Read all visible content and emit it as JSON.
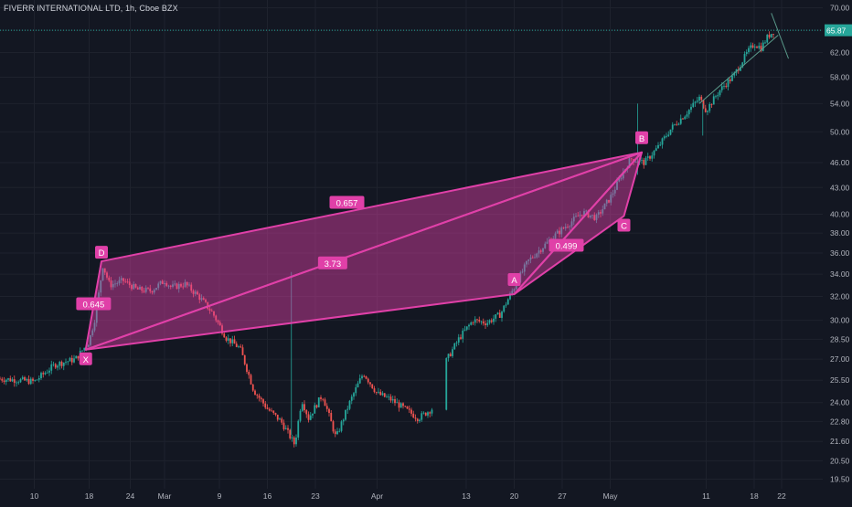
{
  "chart_title": "FIVERR INTERNATIONAL LTD, 1h, Cboe BZX",
  "colors": {
    "background": "#131722",
    "grid": "#1e222d",
    "axis_text": "#b2b5be",
    "candle_up": "#26a69a",
    "candle_down": "#ef5350",
    "pattern": "#e040a8",
    "pattern_fill": "rgba(224,64,168,0.45)",
    "price_line": "#26a69a",
    "trend_line": "#5b9c8c"
  },
  "chart_data": {
    "type": "candlestick",
    "symbol": "FIVERR INTERNATIONAL LTD",
    "interval": "1h",
    "exchange": "Cboe BZX",
    "y_ticks": [
      70.0,
      65.87,
      62.0,
      58.0,
      54.0,
      50.0,
      46.0,
      43.0,
      40.0,
      38.0,
      36.0,
      34.0,
      32.0,
      30.0,
      28.5,
      27.0,
      25.5,
      24.0,
      22.8,
      21.6,
      20.5,
      19.5
    ],
    "y_tick_labels": [
      "70.00",
      "65.87",
      "62.00",
      "58.00",
      "54.00",
      "50.00",
      "46.00",
      "43.00",
      "40.00",
      "38.00",
      "36.00",
      "34.00",
      "32.00",
      "30.00",
      "28.50",
      "27.00",
      "25.50",
      "24.00",
      "22.80",
      "21.60",
      "20.50",
      "19.50"
    ],
    "y_scale": "log",
    "y_range": [
      19.0,
      71.5
    ],
    "x_ticks": [
      {
        "label": "10",
        "x": 10
      },
      {
        "label": "18",
        "x": 18
      },
      {
        "label": "24",
        "x": 24
      },
      {
        "label": "Mar",
        "x": 29
      },
      {
        "label": "9",
        "x": 37
      },
      {
        "label": "16",
        "x": 44
      },
      {
        "label": "23",
        "x": 51
      },
      {
        "label": "Apr",
        "x": 60
      },
      {
        "label": "13",
        "x": 73
      },
      {
        "label": "20",
        "x": 80
      },
      {
        "label": "27",
        "x": 87
      },
      {
        "label": "May",
        "x": 94
      },
      {
        "label": "11",
        "x": 108
      },
      {
        "label": "18",
        "x": 115
      },
      {
        "label": "22",
        "x": 119
      }
    ],
    "x_range": [
      5,
      125
    ],
    "last_price": 65.87,
    "last_price_label": "65.87",
    "price_anchors": [
      [
        5,
        25.6
      ],
      [
        8,
        25.5
      ],
      [
        10,
        25.4
      ],
      [
        13,
        26.6
      ],
      [
        16,
        27.0
      ],
      [
        18,
        28.3
      ],
      [
        19,
        30.5
      ],
      [
        20,
        34.8
      ],
      [
        21,
        33.0
      ],
      [
        23,
        33.4
      ],
      [
        25,
        32.6
      ],
      [
        27,
        32.5
      ],
      [
        29,
        33.4
      ],
      [
        30,
        32.8
      ],
      [
        32,
        33.1
      ],
      [
        34,
        32.0
      ],
      [
        36,
        30.6
      ],
      [
        38,
        28.6
      ],
      [
        40,
        27.8
      ],
      [
        42,
        24.8
      ],
      [
        44,
        23.6
      ],
      [
        46,
        22.8
      ],
      [
        48,
        21.4
      ],
      [
        49,
        24.2
      ],
      [
        50,
        23.0
      ],
      [
        52,
        24.5
      ],
      [
        54,
        21.8
      ],
      [
        56,
        24.0
      ],
      [
        58,
        26.0
      ],
      [
        60,
        24.6
      ],
      [
        62,
        24.2
      ],
      [
        64,
        23.6
      ],
      [
        66,
        23.0
      ],
      [
        68,
        23.6
      ],
      [
        70,
        26.8
      ],
      [
        72,
        28.6
      ],
      [
        74,
        30.0
      ],
      [
        76,
        29.8
      ],
      [
        78,
        30.5
      ],
      [
        80,
        32.8
      ],
      [
        82,
        35.2
      ],
      [
        84,
        36.5
      ],
      [
        86,
        37.8
      ],
      [
        88,
        39.0
      ],
      [
        90,
        40.2
      ],
      [
        92,
        39.6
      ],
      [
        94,
        41.8
      ],
      [
        96,
        45.0
      ],
      [
        97,
        46.5
      ],
      [
        99,
        46.0
      ],
      [
        101,
        48.0
      ],
      [
        103,
        50.6
      ],
      [
        105,
        52.5
      ],
      [
        107,
        54.8
      ],
      [
        108,
        53.0
      ],
      [
        110,
        56.0
      ],
      [
        112,
        58.2
      ],
      [
        114,
        62.0
      ],
      [
        115,
        63.5
      ],
      [
        116,
        62.8
      ],
      [
        117,
        64.8
      ],
      [
        118,
        65.9
      ]
    ],
    "patterns": [
      {
        "points": [
          {
            "label": "X",
            "x": 17.5,
            "y": 27.7
          },
          {
            "label": "D",
            "x": 19.8,
            "y": 35.2
          },
          {
            "label": "B",
            "x": 98.6,
            "y": 47.3
          }
        ],
        "ratio_label": "0.657"
      },
      {
        "points": [
          {
            "label": "X",
            "x": 17.5,
            "y": 27.7
          },
          {
            "label": "A",
            "x": 80.0,
            "y": 32.2
          },
          {
            "label": "B",
            "x": 98.6,
            "y": 47.3
          }
        ],
        "ratio_label": "3.73"
      },
      {
        "points": [
          {
            "label": "A",
            "x": 80.0,
            "y": 32.2
          },
          {
            "label": "B",
            "x": 98.6,
            "y": 47.3
          },
          {
            "label": "C",
            "x": 96.0,
            "y": 39.8
          }
        ],
        "ratio_label": "0.499"
      }
    ],
    "leg_label": "0.645",
    "point_labels": [
      "X",
      "D",
      "A",
      "B",
      "C"
    ],
    "trend_line": {
      "start": {
        "x": 107,
        "y": 54.0
      },
      "end": {
        "x": 118.5,
        "y": 65.0
      }
    },
    "cross_line": {
      "start": {
        "x": 117.5,
        "y": 69.0
      },
      "end": {
        "x": 120.0,
        "y": 61.0
      }
    }
  }
}
